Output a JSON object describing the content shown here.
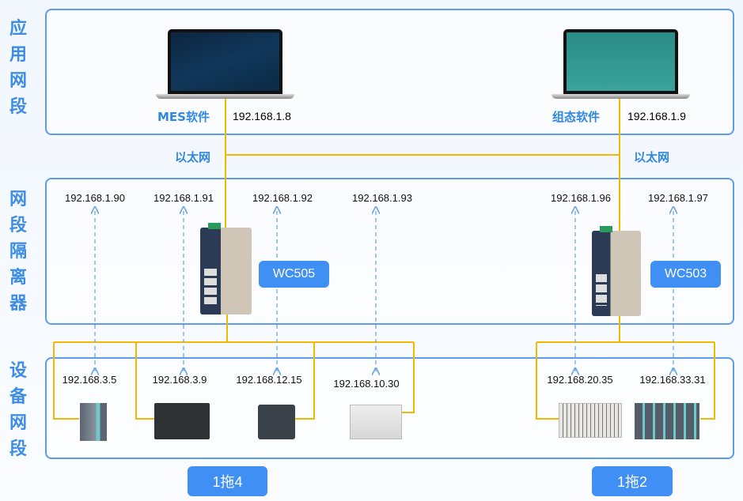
{
  "sections": {
    "app": "应用网段",
    "isolation": "网段隔离器",
    "device": "设备网段"
  },
  "software": [
    {
      "name": "MES软件",
      "ip": "192.168.1.8"
    },
    {
      "name": "组态软件",
      "ip": "192.168.1.9"
    }
  ],
  "ethernet": [
    "以太网",
    "以太网"
  ],
  "gateways": [
    {
      "model": "WC505",
      "ips": [
        "192.168.1.90",
        "192.168.1.91",
        "192.168.1.92",
        "192.168.1.93"
      ]
    },
    {
      "model": "WC503",
      "ips": [
        "192.168.1.96",
        "192.168.1.97"
      ]
    }
  ],
  "devices": [
    "192.168.3.5",
    "192.168.3.9",
    "192.168.12.15",
    "192.168.10.30",
    "192.168.20.35",
    "192.168.33.31"
  ],
  "badges": [
    "1拖4",
    "1拖2"
  ],
  "colors": {
    "panel_border": "#5a9cf0",
    "line": "#f5b800",
    "arrow": "#6fa9dc",
    "badge": "#3f8ff5",
    "label": "#2f88de"
  }
}
